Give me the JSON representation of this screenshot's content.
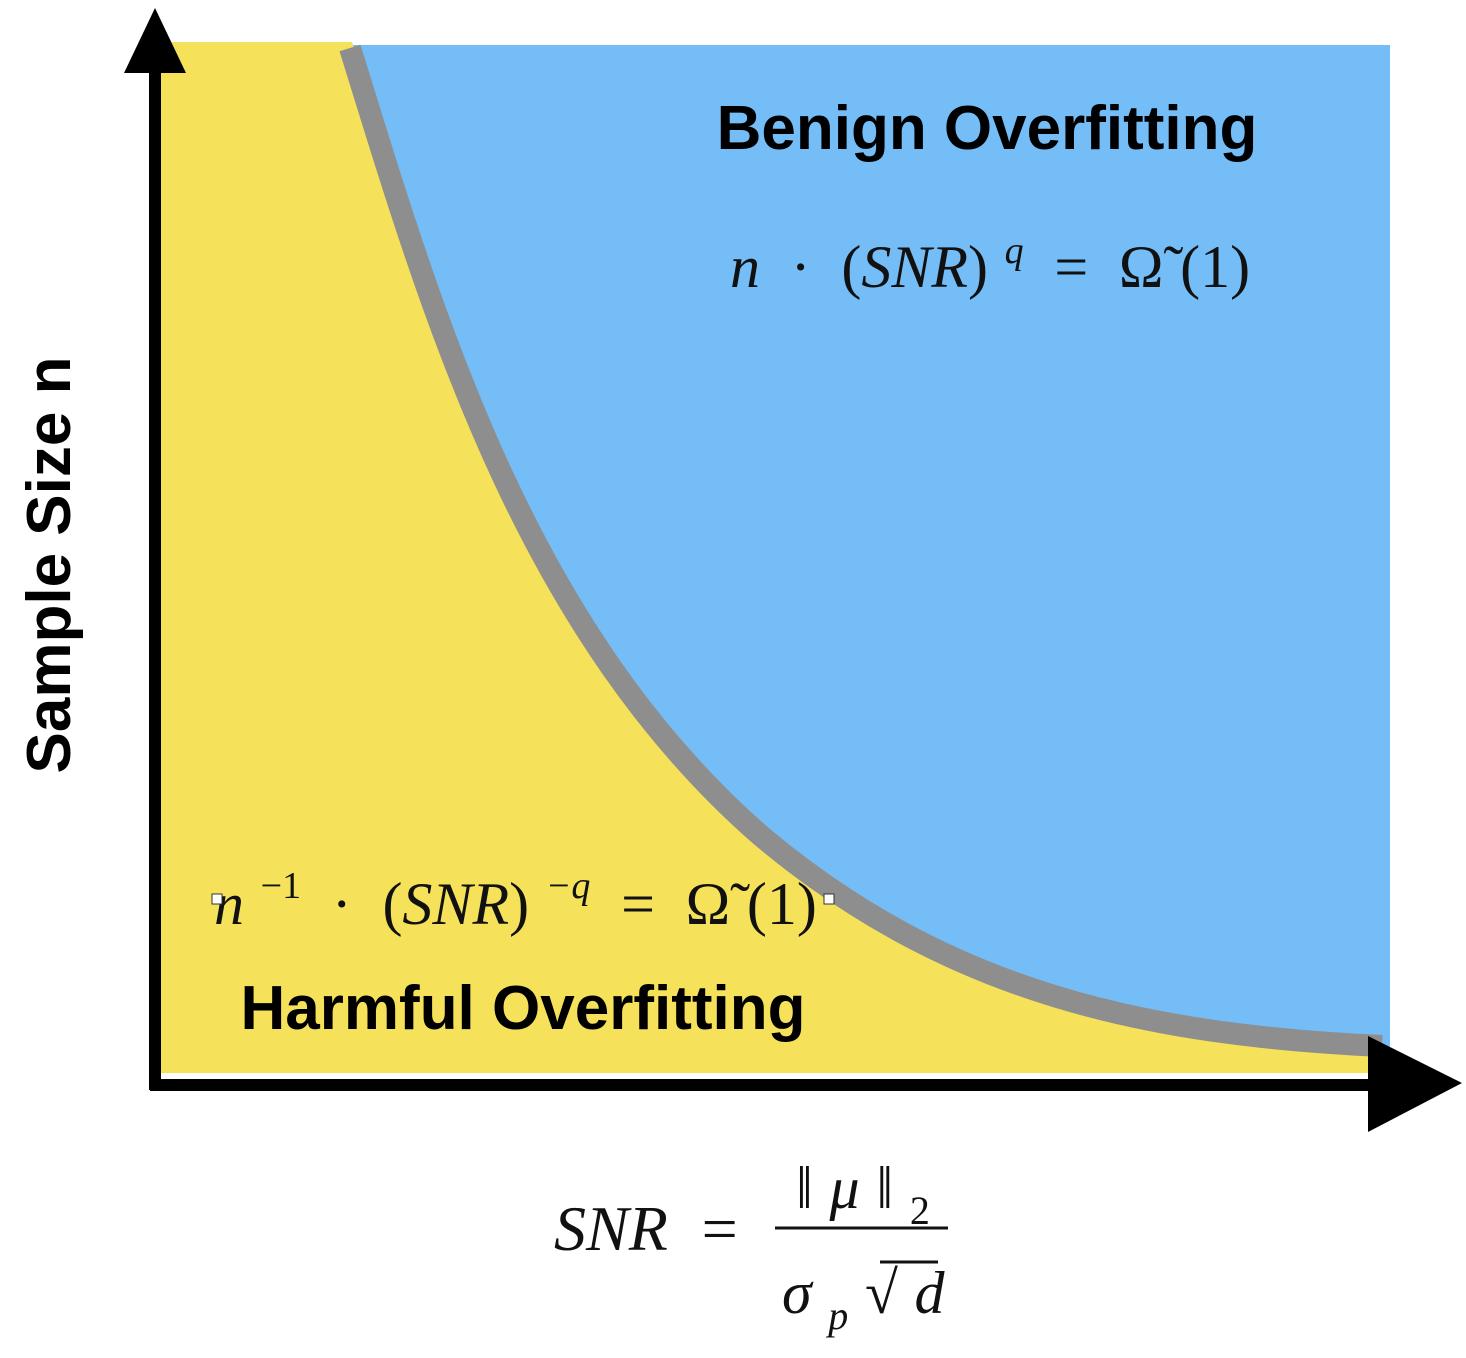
{
  "labels": {
    "y_axis": "Sample Size n",
    "benign_region": "Benign Overfitting",
    "harmful_region": "Harmful Overfitting"
  },
  "formulas": {
    "benign": {
      "n": "n",
      "dot": "·",
      "snr": "(SNR)",
      "exp": "q",
      "equals": "=",
      "omega": "Ω̃",
      "arg": "(1)"
    },
    "harmful": {
      "n": "n",
      "n_exp": "−1",
      "dot": "·",
      "snr": "(SNR)",
      "exp": "−q",
      "equals": "=",
      "omega": "Ω̃",
      "arg": "(1)"
    },
    "snr_definition": {
      "lhs": "SNR",
      "equals": "=",
      "num_norm_open": "‖",
      "num_mu": "μ",
      "num_norm_close": "‖",
      "num_sub": "2",
      "den_sigma": "σ",
      "den_sub": "p",
      "den_sqrt": "√",
      "den_d": "d"
    }
  },
  "colors": {
    "benign_region": "#74bdf7",
    "harmful_region": "#f5e15a",
    "boundary": "#8e8e8e",
    "axis": "#000000"
  }
}
